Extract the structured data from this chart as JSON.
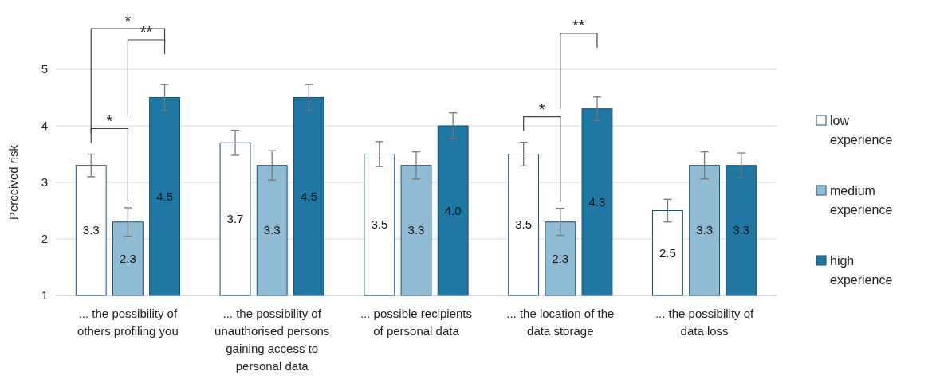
{
  "chart_data": {
    "type": "bar",
    "ylabel": "Perceived risk",
    "categories": [
      "... the possibility of others profiling you",
      "... the possibility of unauthorised persons gaining access to personal data",
      "... possible recipients of personal data",
      "... the location of the data storage",
      "... the possibility of data loss"
    ],
    "series": [
      {
        "name": "low experience",
        "color": "#ffffff",
        "values": [
          3.3,
          3.7,
          3.5,
          3.5,
          2.5
        ],
        "value_labels": [
          "3.3",
          "3.7",
          "3.5",
          "3.5",
          "2.5"
        ],
        "errors": [
          0.2,
          0.22,
          0.22,
          0.21,
          0.2
        ]
      },
      {
        "name": "medium experience",
        "color": "#8fbcd4",
        "values": [
          2.3,
          3.3,
          3.3,
          2.3,
          3.3
        ],
        "value_labels": [
          "2.3",
          "3.3",
          "3.3",
          "2.3",
          "3.3"
        ],
        "errors": [
          0.25,
          0.26,
          0.24,
          0.24,
          0.24
        ]
      },
      {
        "name": "high experience",
        "color": "#1f77a4",
        "values": [
          4.5,
          4.5,
          4.0,
          4.3,
          3.3
        ],
        "value_labels": [
          "4.5",
          "4.5",
          "4.0",
          "4.3",
          "3.3"
        ],
        "errors": [
          0.23,
          0.23,
          0.23,
          0.21,
          0.22
        ]
      }
    ],
    "ylim": [
      1,
      5
    ],
    "yticks": [
      1,
      2,
      3,
      4,
      5
    ],
    "grid": "y",
    "legend": "right",
    "annotations": [
      "*",
      "**",
      "*",
      "*",
      "**"
    ]
  }
}
